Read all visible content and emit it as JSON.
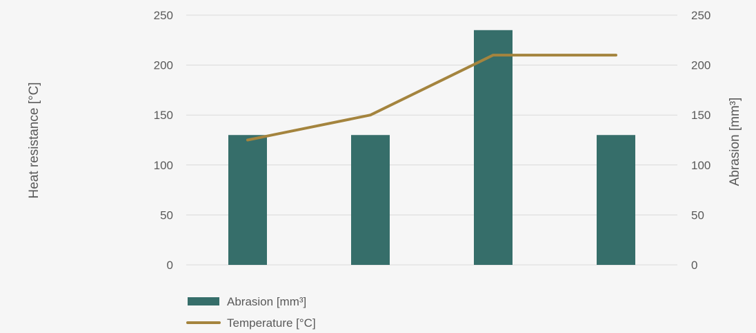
{
  "colors": {
    "background": "#f6f6f6",
    "bar": "#366e6a",
    "line": "#a4843e",
    "grid": "#d9d9d9",
    "text": "#595959"
  },
  "chart_data": {
    "type": "bar",
    "categories": [
      "",
      "",
      "",
      ""
    ],
    "series": [
      {
        "name": "Abrasion [mm³]",
        "type": "bar",
        "axis": "right",
        "values": [
          130,
          130,
          235,
          130
        ]
      },
      {
        "name": "Temperature [°C]",
        "type": "line",
        "axis": "left",
        "values": [
          125,
          150,
          210,
          210
        ]
      }
    ],
    "y_left": {
      "label": "Heat resistance [°C]",
      "range": [
        0,
        250
      ],
      "ticks": [
        "0",
        "50",
        "100",
        "150",
        "200",
        "250"
      ]
    },
    "y_right": {
      "label": "Abrasion [mm³]",
      "range": [
        0,
        250
      ],
      "ticks": [
        "0",
        "50",
        "100",
        "150",
        "200",
        "250"
      ]
    },
    "grid": true,
    "legend_position": "bottom-left"
  }
}
